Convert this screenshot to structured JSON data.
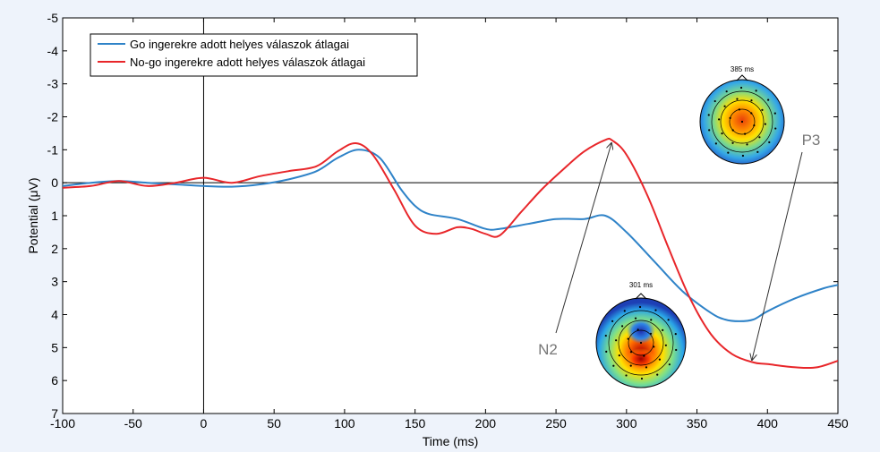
{
  "chart_data": {
    "type": "line",
    "xlabel": "Time (ms)",
    "ylabel": "Potential (μV)",
    "xlim": [
      -100,
      450
    ],
    "ylim": [
      -5,
      7
    ],
    "y_inverted": true,
    "x_ticks": [
      "-100",
      "-50",
      "0",
      "50",
      "100",
      "150",
      "200",
      "250",
      "300",
      "350",
      "400",
      "450"
    ],
    "y_ticks": [
      "-5",
      "-4",
      "-3",
      "-2",
      "-1",
      "0",
      "1",
      "2",
      "3",
      "4",
      "5",
      "6",
      "7"
    ],
    "legend_position": "top-left",
    "series": [
      {
        "name": "Go ingerekre adott helyes válaszok átlagai",
        "color": "#2f83c8",
        "x": [
          -100,
          -80,
          -60,
          -40,
          -20,
          0,
          20,
          40,
          60,
          80,
          95,
          110,
          125,
          140,
          150,
          160,
          180,
          200,
          210,
          230,
          250,
          270,
          285,
          300,
          320,
          340,
          360,
          370,
          380,
          390,
          400,
          420,
          440,
          450
        ],
        "y": [
          0.1,
          0.0,
          -0.05,
          0.0,
          0.05,
          0.1,
          0.12,
          0.05,
          -0.1,
          -0.35,
          -0.75,
          -1.0,
          -0.75,
          0.2,
          0.7,
          0.95,
          1.1,
          1.4,
          1.4,
          1.25,
          1.1,
          1.1,
          1.0,
          1.5,
          2.4,
          3.3,
          3.95,
          4.15,
          4.2,
          4.15,
          3.9,
          3.5,
          3.2,
          3.1
        ]
      },
      {
        "name": "No-go ingerekre adott helyes válaszok átlagai",
        "color": "#e8262a",
        "x": [
          -100,
          -80,
          -60,
          -40,
          -20,
          0,
          20,
          40,
          60,
          80,
          95,
          108,
          120,
          135,
          150,
          165,
          180,
          190,
          200,
          210,
          225,
          240,
          255,
          270,
          285,
          290,
          300,
          315,
          330,
          345,
          360,
          375,
          390,
          400,
          420,
          435,
          450
        ],
        "y": [
          0.15,
          0.1,
          -0.05,
          0.1,
          0.0,
          -0.15,
          0.0,
          -0.2,
          -0.35,
          -0.5,
          -0.95,
          -1.2,
          -0.85,
          0.2,
          1.3,
          1.55,
          1.35,
          1.4,
          1.55,
          1.6,
          0.9,
          0.2,
          -0.4,
          -0.95,
          -1.3,
          -1.28,
          -0.85,
          0.4,
          2.0,
          3.5,
          4.6,
          5.2,
          5.45,
          5.5,
          5.6,
          5.6,
          5.4
        ]
      }
    ],
    "annotations": [
      {
        "label": "N2"
      },
      {
        "label": "P3"
      }
    ],
    "topomaps": [
      {
        "label": "301 ms"
      },
      {
        "label": "385 ms"
      }
    ]
  }
}
